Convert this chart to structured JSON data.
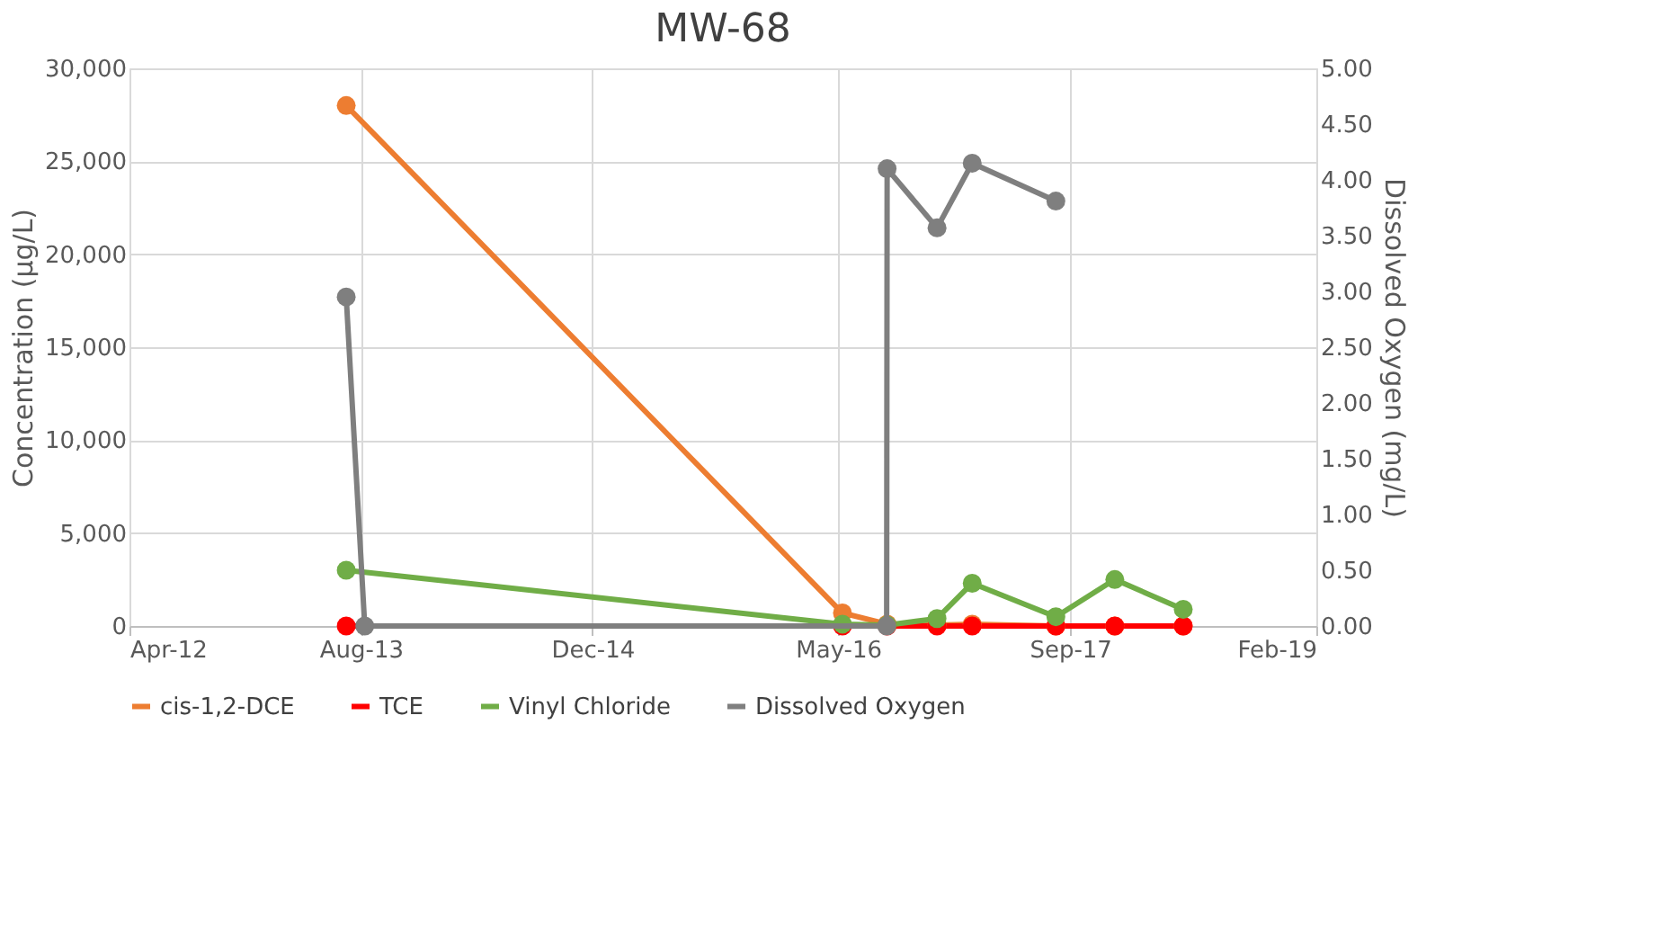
{
  "chart_data": {
    "type": "line",
    "title": "MW-68",
    "ylabel": "Concentration (µg/L)",
    "y2label": "Dissolved Oxygen (mg/L)",
    "series": [
      {
        "name": "cis-1,2-DCE",
        "color": "#ed7d31",
        "x": [
          "2013-07-01",
          "2016-05-10",
          "2016-08-12",
          "2016-11-25",
          "2017-02-07",
          "2017-08-02",
          "2017-12-04",
          "2018-04-27"
        ],
        "values": [
          28000,
          700,
          100,
          50,
          100,
          0,
          0,
          0
        ]
      },
      {
        "name": "TCE",
        "color": "#ff0000",
        "x": [
          "2013-07-01",
          "2016-05-10",
          "2016-08-12",
          "2016-11-25",
          "2017-02-07",
          "2017-08-02",
          "2017-12-04",
          "2018-04-27"
        ],
        "values": [
          0,
          0,
          0,
          0,
          0,
          0,
          0,
          0
        ]
      },
      {
        "name": "Vinyl Chloride",
        "color": "#70ad47",
        "x": [
          "2013-07-01",
          "2016-05-10",
          "2016-08-12",
          "2016-11-25",
          "2017-02-07",
          "2017-08-02",
          "2017-12-04",
          "2018-04-27"
        ],
        "values": [
          3000,
          100,
          50,
          400,
          2300,
          500,
          2500,
          900
        ]
      },
      {
        "name": "Dissolved Oxygen",
        "color": "#7f7f7f",
        "axis": "y2",
        "x": [
          "2013-07-01",
          "2013-08-09",
          "2016-08-11",
          "2016-08-12",
          "2016-11-25",
          "2017-02-07",
          "2017-08-02"
        ],
        "values": [
          2.95,
          0,
          0,
          4.1,
          3.57,
          4.15,
          3.81
        ]
      }
    ],
    "xlim": [
      "2012-04-01",
      "2019-02-01"
    ],
    "xticks": [
      {
        "value": "2012-04-01",
        "label": "Apr-12"
      },
      {
        "value": "2013-08-01",
        "label": "Aug-13"
      },
      {
        "value": "2014-12-01",
        "label": "Dec-14"
      },
      {
        "value": "2016-05-01",
        "label": "May-16"
      },
      {
        "value": "2017-09-01",
        "label": "Sep-17"
      },
      {
        "value": "2019-02-01",
        "label": "Feb-19"
      }
    ],
    "ylim": [
      0,
      30000
    ],
    "yticks": [
      {
        "value": 0,
        "label": "0"
      },
      {
        "value": 5000,
        "label": "5,000"
      },
      {
        "value": 10000,
        "label": "10,000"
      },
      {
        "value": 15000,
        "label": "15,000"
      },
      {
        "value": 20000,
        "label": "20,000"
      },
      {
        "value": 25000,
        "label": "25,000"
      },
      {
        "value": 30000,
        "label": "30,000"
      }
    ],
    "y2lim": [
      0,
      5
    ],
    "y2ticks": [
      {
        "value": 0,
        "label": "0.00"
      },
      {
        "value": 0.5,
        "label": "0.50"
      },
      {
        "value": 1,
        "label": "1.00"
      },
      {
        "value": 1.5,
        "label": "1.50"
      },
      {
        "value": 2,
        "label": "2.00"
      },
      {
        "value": 2.5,
        "label": "2.50"
      },
      {
        "value": 3,
        "label": "3.00"
      },
      {
        "value": 3.5,
        "label": "3.50"
      },
      {
        "value": 4,
        "label": "4.00"
      },
      {
        "value": 4.5,
        "label": "4.50"
      },
      {
        "value": 5,
        "label": "5.00"
      }
    ],
    "grid": true,
    "legend": "bottom",
    "marker": "circle",
    "line_style": "solid"
  }
}
